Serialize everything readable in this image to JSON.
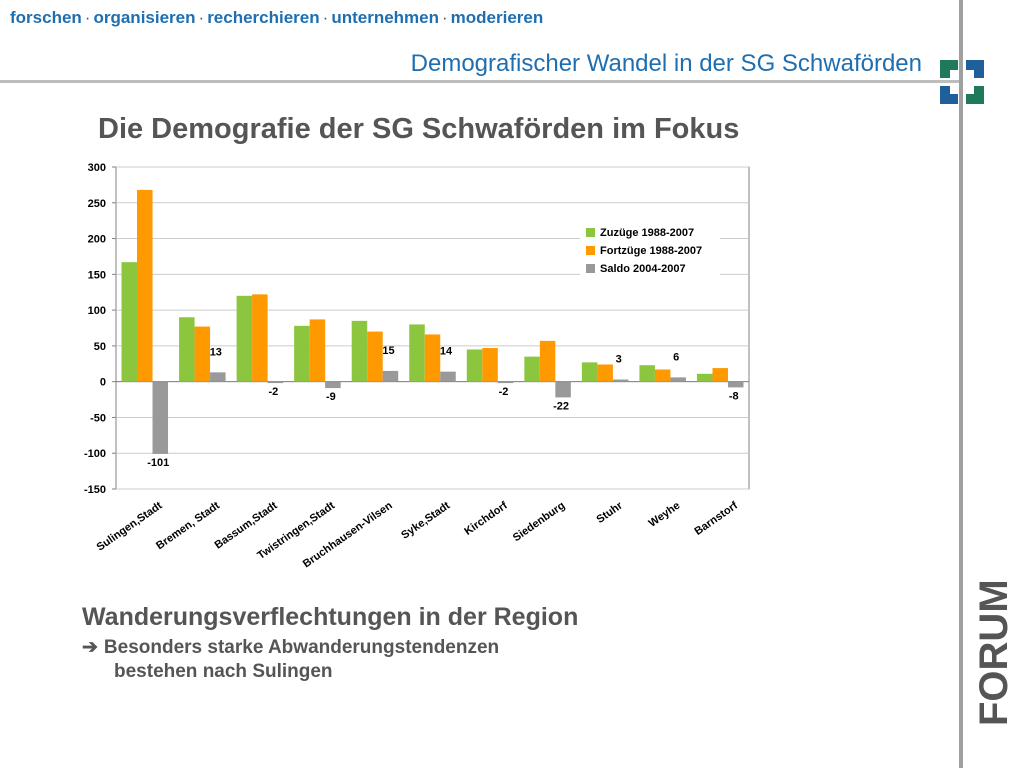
{
  "header": {
    "tagline": [
      "forschen",
      "organisieren",
      "recherchieren",
      "unternehmen",
      "moderieren"
    ],
    "separator": "·",
    "title": "Demografischer Wandel in der SG Schwaförden"
  },
  "slide": {
    "title": "Die Demografie der SG Schwaförden im Fokus"
  },
  "text": {
    "heading": "Wanderungsverflechtungen in der Region",
    "bullet_line1": "Besonders starke Abwanderungstendenzen",
    "bullet_line2": "bestehen nach Sulingen"
  },
  "brand": {
    "wordmark": "FORUM"
  },
  "icons": {
    "bullet_arrow": "right-arrow-icon",
    "logo": "forum-logo-icon"
  },
  "colors": {
    "accent_blue": "#1f6fb0",
    "logo_green": "#1f7a5a",
    "logo_blue": "#1f5f9a",
    "series": [
      "#8cc63f",
      "#ff9900",
      "#999999"
    ]
  },
  "chart_data": {
    "type": "bar",
    "title": "",
    "xlabel": "",
    "ylabel": "",
    "ylim": [
      -150,
      300
    ],
    "yticks": [
      -150,
      -100,
      -50,
      0,
      50,
      100,
      150,
      200,
      250,
      300
    ],
    "grid": true,
    "legend": "top-right",
    "categories": [
      "Sulingen,Stadt",
      "Bremen, Stadt",
      "Bassum,Stadt",
      "Twistringen,Stadt",
      "Bruchhausen-Vilsen",
      "Syke,Stadt",
      "Kirchdorf",
      "Siedenburg",
      "Stuhr",
      "Weyhe",
      "Barnstorf"
    ],
    "series": [
      {
        "name": "Zuzüge 1988-2007",
        "values": [
          167,
          90,
          120,
          78,
          85,
          80,
          45,
          35,
          27,
          23,
          11
        ]
      },
      {
        "name": "Fortzüge 1988-2007",
        "values": [
          268,
          77,
          122,
          87,
          70,
          66,
          47,
          57,
          24,
          17,
          19
        ]
      },
      {
        "name": "Saldo 2004-2007",
        "values": [
          -101,
          13,
          -2,
          -9,
          15,
          14,
          -2,
          -22,
          3,
          6,
          -8
        ]
      }
    ],
    "data_labels": {
      "series": 2,
      "labels": [
        "-101",
        "13",
        "-2",
        "-9",
        "15",
        "14",
        "-2",
        "-22",
        "3",
        "6",
        "-8"
      ]
    }
  }
}
